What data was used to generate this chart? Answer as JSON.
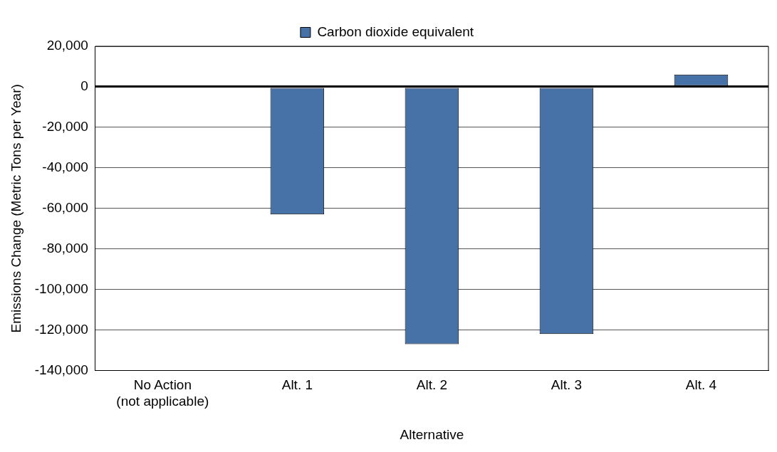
{
  "chart_data": {
    "type": "bar",
    "xlabel": "Alternative",
    "ylabel": "Emissions Change (Metric Tons per Year)",
    "categories": [
      "No Action\n(not applicable)",
      "Alt. 1",
      "Alt. 2",
      "Alt. 3",
      "Alt. 4"
    ],
    "series": [
      {
        "name": "Carbon dioxide equivalent",
        "color": "#4672a8",
        "values": [
          null,
          -63000,
          -127000,
          -122000,
          6000
        ]
      }
    ],
    "ylim": [
      -140000,
      20000
    ],
    "yticks": [
      {
        "value": -140000,
        "label": "-140,000"
      },
      {
        "value": -120000,
        "label": "-120,000"
      },
      {
        "value": -100000,
        "label": "-100,000"
      },
      {
        "value": -80000,
        "label": "-80,000"
      },
      {
        "value": -60000,
        "label": "-60,000"
      },
      {
        "value": -40000,
        "label": "-40,000"
      },
      {
        "value": -20000,
        "label": "-20,000"
      },
      0,
      {
        "value": 20000,
        "label": "20,000"
      }
    ],
    "grid": "y",
    "legend": "top"
  }
}
